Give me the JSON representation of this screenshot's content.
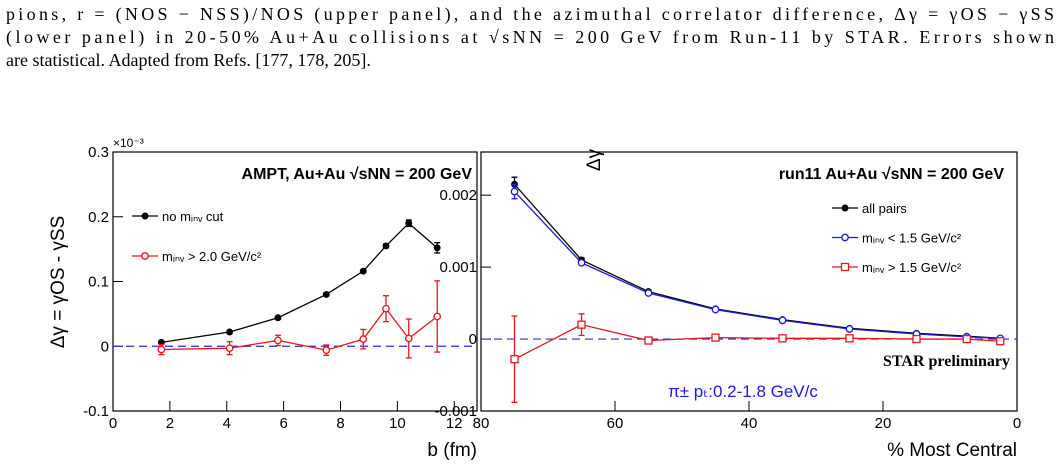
{
  "caption": [
    "pions, r = (NOS − NSS)/NOS (upper panel), and the azimuthal correlator difference, Δγ = γOS − γSS",
    "(lower panel) in 20-50% Au+Au collisions at √sNN = 200 GeV from Run-11 by STAR. Errors shown",
    "are statistical. Adapted from Refs. [177, 178, 205]."
  ],
  "chart_data": [
    {
      "type": "line",
      "title": "AMPT, Au+Au  √sNN = 200 GeV",
      "y_multiplier": "×10⁻³",
      "y_label": "Δγ = γOS - γSS",
      "x_label": "b (fm)",
      "x": [
        1.7,
        4.1,
        5.8,
        7.5,
        8.8,
        9.6,
        10.4,
        11.4
      ],
      "series": [
        {
          "name": "no mᵢₙᵥ cut",
          "color": "#000000",
          "marker": "filled-circle",
          "values": [
            0.006,
            0.022,
            0.044,
            0.08,
            0.116,
            0.155,
            0.19,
            0.152
          ],
          "errors": [
            0.002,
            0.002,
            0.002,
            0.002,
            0.002,
            0.003,
            0.005,
            0.008
          ]
        },
        {
          "name": "mᵢₙᵥ > 2.0 GeV/c²",
          "color": "#e8141b",
          "marker": "open-circle",
          "values": [
            -0.005,
            -0.003,
            0.009,
            -0.006,
            0.011,
            0.058,
            0.012,
            0.046
          ],
          "errors": [
            0.008,
            0.01,
            0.008,
            0.008,
            0.015,
            0.02,
            0.03,
            0.055
          ]
        }
      ],
      "xlim": [
        0,
        12.8
      ],
      "xticks": [
        0,
        2,
        4,
        6,
        8,
        10,
        12
      ],
      "ylim": [
        -0.1,
        0.3
      ],
      "yticks": [
        -0.1,
        0,
        0.1,
        0.2,
        0.3
      ]
    },
    {
      "type": "line",
      "title": "run11 Au+Au  √sNN = 200 GeV",
      "y_label": "Δγ",
      "x_label": "% Most Central",
      "annotations": [
        "STAR preliminary",
        "π± pₜ:0.2-1.8 GeV/c"
      ],
      "x": [
        75,
        65,
        55,
        45,
        35,
        25,
        15,
        7.5,
        2.5
      ],
      "series": [
        {
          "name": "all pairs",
          "color": "#000000",
          "marker": "filled-circle",
          "values": [
            0.00215,
            0.0011,
            0.00066,
            0.00042,
            0.00027,
            0.00015,
            8e-05,
            4e-05,
            1e-05
          ],
          "errors": [
            0.0001,
            3e-05,
            2e-05,
            1e-05,
            1e-05,
            1e-05,
            1e-05,
            1e-05,
            1e-05
          ]
        },
        {
          "name": "mᵢₙᵥ < 1.5 GeV/c²",
          "color": "#1a1adc",
          "marker": "open-circle",
          "values": [
            0.00205,
            0.00106,
            0.00064,
            0.00041,
            0.00026,
            0.00014,
            7e-05,
            3e-05,
            1e-05
          ],
          "errors": [
            0.0001,
            3e-05,
            2e-05,
            1e-05,
            1e-05,
            1e-05,
            1e-05,
            1e-05,
            1e-05
          ]
        },
        {
          "name": "mᵢₙᵥ > 1.5 GeV/c²",
          "color": "#e8141b",
          "marker": "open-square",
          "values": [
            -0.00028,
            0.0002,
            -2e-05,
            2e-05,
            1e-05,
            1e-05,
            0,
            0,
            -3e-05
          ],
          "errors": [
            0.0006,
            0.00015,
            4e-05,
            3e-05,
            3e-05,
            3e-05,
            3e-05,
            4e-05,
            4e-05
          ]
        }
      ],
      "xlim": [
        80,
        0
      ],
      "xticks": [
        80,
        60,
        40,
        20,
        0
      ],
      "ylim": [
        -0.001,
        0.0026
      ],
      "yticks": [
        -0.001,
        0,
        0.001,
        0.002
      ]
    }
  ]
}
